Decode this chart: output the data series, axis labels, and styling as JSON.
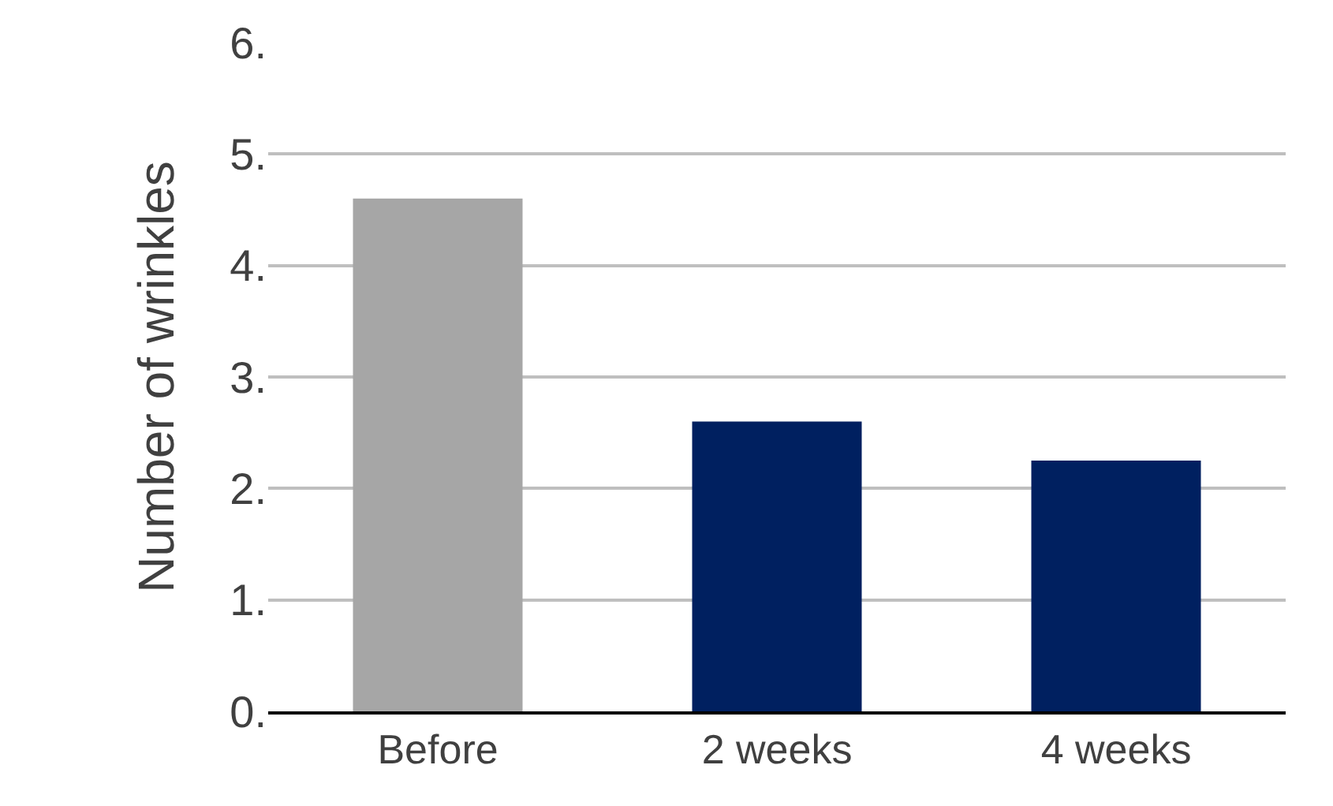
{
  "chart_data": {
    "type": "bar",
    "ylabel": "Number of wrinkles",
    "categories": [
      "Before",
      "2 weeks",
      "4 weeks"
    ],
    "values": [
      4.6,
      2.6,
      2.25
    ],
    "colors": [
      "#a6a6a6",
      "#002060",
      "#002060"
    ],
    "ylim": [
      0,
      6
    ],
    "yticks": [
      {
        "value": 0,
        "label": "0."
      },
      {
        "value": 1,
        "label": "1."
      },
      {
        "value": 2,
        "label": "2."
      },
      {
        "value": 3,
        "label": "3."
      },
      {
        "value": 4,
        "label": "4."
      },
      {
        "value": 5,
        "label": "5."
      },
      {
        "value": 6,
        "label": "6."
      }
    ],
    "grid": "y"
  }
}
